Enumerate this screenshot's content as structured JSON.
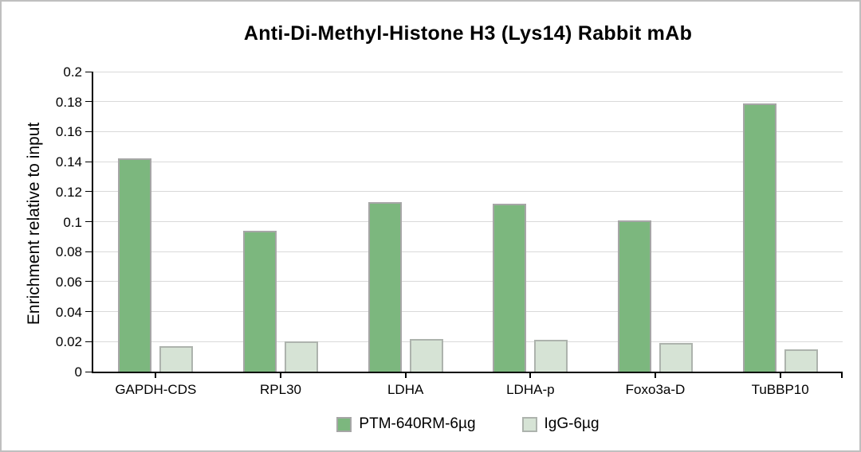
{
  "window": {
    "background": "#ffffff",
    "border_color": "#bfbfbf"
  },
  "chart_data": {
    "type": "bar",
    "title": "Anti-Di-Methyl-Histone H3 (Lys14) Rabbit mAb",
    "ylabel": "Enrichment relative to input",
    "xlabel": "",
    "categories": [
      "GAPDH-CDS",
      "RPL30",
      "LDHA",
      "LDHA-p",
      "Foxo3a-D",
      "TuBBP10"
    ],
    "series": [
      {
        "name": "PTM-640RM-6µg",
        "color": "#7cb77e",
        "border_color": "#a6a6a6",
        "values": [
          0.142,
          0.094,
          0.113,
          0.112,
          0.101,
          0.179
        ]
      },
      {
        "name": "IgG-6µg",
        "color": "#d6e3d5",
        "border_color": "#adb3ad",
        "values": [
          0.017,
          0.02,
          0.022,
          0.021,
          0.019,
          0.015
        ]
      }
    ],
    "ylim": [
      0,
      0.2
    ],
    "ytick_step": 0.02,
    "ytick_labels": [
      "0",
      "0.02",
      "0.04",
      "0.06",
      "0.08",
      "0.1",
      "0.12",
      "0.14",
      "0.16",
      "0.18",
      "0.2"
    ],
    "grid": true,
    "gridline_color": "#d9d9d9",
    "axis_color": "#000000",
    "legend_position": "bottom"
  }
}
